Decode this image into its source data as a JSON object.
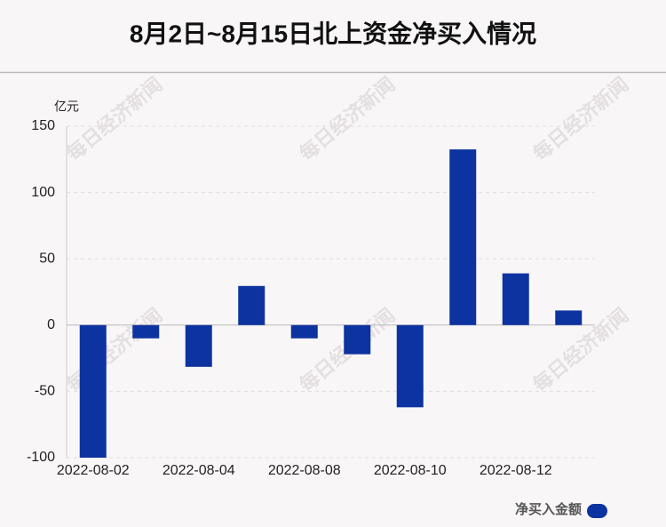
{
  "chart_data": {
    "type": "bar",
    "title": "8月2日~8月15日北上资金净买入情况",
    "y_label": "亿元",
    "watermark": "每日经济新闻",
    "categories": [
      "2022-08-02",
      null,
      "2022-08-04",
      null,
      "2022-08-08",
      null,
      "2022-08-10",
      null,
      "2022-08-12",
      null
    ],
    "series": [
      {
        "name": "净买入金额",
        "color": "#0d33a0",
        "values": [
          -100,
          -10,
          -31.5,
          29.5,
          -10,
          -22,
          -62,
          132.5,
          39,
          11
        ]
      }
    ],
    "ylim": [
      -100,
      150
    ],
    "yticks": [
      -100,
      -50,
      0,
      50,
      100,
      150
    ],
    "grid": true
  }
}
